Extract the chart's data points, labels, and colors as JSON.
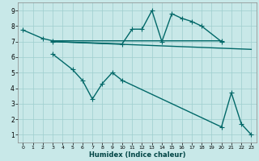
{
  "bg_color": "#c8e8e8",
  "grid_color": "#9ecece",
  "line_color": "#006868",
  "line_width": 1.0,
  "marker": "+",
  "marker_size": 4,
  "marker_lw": 0.8,
  "xlabel": "Humidex (Indice chaleur)",
  "xlim": [
    -0.5,
    23.5
  ],
  "ylim": [
    0.5,
    9.5
  ],
  "xticks": [
    0,
    1,
    2,
    3,
    4,
    5,
    6,
    7,
    8,
    9,
    10,
    11,
    12,
    13,
    14,
    15,
    16,
    17,
    18,
    19,
    20,
    21,
    22,
    23
  ],
  "yticks": [
    1,
    2,
    3,
    4,
    5,
    6,
    7,
    8,
    9
  ],
  "line1_x": [
    0,
    2,
    3,
    20
  ],
  "line1_y": [
    7.75,
    7.2,
    7.05,
    7.05
  ],
  "line2_x": [
    3,
    23
  ],
  "line2_y": [
    7.0,
    6.5
  ],
  "line3_x": [
    3,
    10,
    11,
    12,
    13,
    14,
    15,
    16,
    17,
    18,
    20
  ],
  "line3_y": [
    7.0,
    6.85,
    7.8,
    7.8,
    9.0,
    7.0,
    8.8,
    8.5,
    8.3,
    8.0,
    7.0
  ],
  "line4_x": [
    3,
    5,
    6,
    7,
    8,
    9,
    10,
    20,
    21,
    22,
    23
  ],
  "line4_y": [
    6.2,
    5.2,
    4.5,
    3.3,
    4.3,
    5.0,
    4.5,
    1.5,
    3.7,
    1.7,
    1.0
  ]
}
